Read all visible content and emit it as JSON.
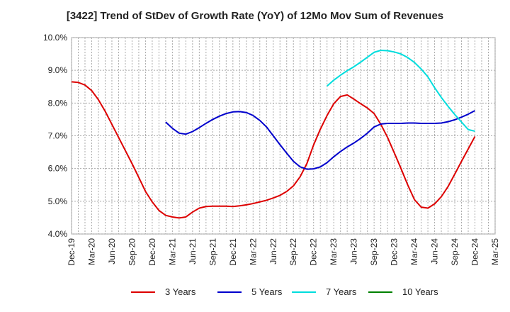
{
  "chart_data": {
    "type": "line",
    "title": "[3422]  Trend of StDev of Growth Rate (YoY) of 12Mo Mov Sum of Revenues",
    "xlabel": "",
    "ylabel": "",
    "ylim": [
      4.0,
      10.0
    ],
    "y_ticks": [
      "4.0%",
      "5.0%",
      "6.0%",
      "7.0%",
      "8.0%",
      "9.0%",
      "10.0%"
    ],
    "x_ticks": [
      "Dec-19",
      "Mar-20",
      "Jun-20",
      "Sep-20",
      "Dec-20",
      "Mar-21",
      "Jun-21",
      "Sep-21",
      "Dec-21",
      "Mar-22",
      "Jun-22",
      "Sep-22",
      "Dec-22",
      "Mar-23",
      "Jun-23",
      "Sep-23",
      "Dec-23",
      "Mar-24",
      "Jun-24",
      "Sep-24",
      "Dec-24",
      "Mar-25"
    ],
    "grid": true,
    "legend_position": "bottom",
    "series": [
      {
        "name": "3 Years",
        "color": "#dd0000",
        "points": [
          [
            0,
            8.65
          ],
          [
            1,
            8.63
          ],
          [
            2,
            8.55
          ],
          [
            3,
            8.38
          ],
          [
            4,
            8.1
          ],
          [
            5,
            7.75
          ],
          [
            6,
            7.35
          ],
          [
            7,
            6.95
          ],
          [
            8,
            6.55
          ],
          [
            9,
            6.15
          ],
          [
            10,
            5.73
          ],
          [
            11,
            5.3
          ],
          [
            12,
            4.98
          ],
          [
            13,
            4.72
          ],
          [
            14,
            4.57
          ],
          [
            15,
            4.52
          ],
          [
            16,
            4.49
          ],
          [
            17,
            4.52
          ],
          [
            18,
            4.67
          ],
          [
            19,
            4.79
          ],
          [
            20,
            4.84
          ],
          [
            21,
            4.85
          ],
          [
            22,
            4.85
          ],
          [
            23,
            4.85
          ],
          [
            24,
            4.84
          ],
          [
            25,
            4.86
          ],
          [
            26,
            4.89
          ],
          [
            27,
            4.93
          ],
          [
            28,
            4.98
          ],
          [
            29,
            5.03
          ],
          [
            30,
            5.1
          ],
          [
            31,
            5.18
          ],
          [
            32,
            5.3
          ],
          [
            33,
            5.47
          ],
          [
            34,
            5.75
          ],
          [
            35,
            6.15
          ],
          [
            36,
            6.72
          ],
          [
            37,
            7.2
          ],
          [
            38,
            7.62
          ],
          [
            39,
            7.98
          ],
          [
            40,
            8.2
          ],
          [
            41,
            8.25
          ],
          [
            42,
            8.12
          ],
          [
            43,
            7.98
          ],
          [
            44,
            7.85
          ],
          [
            45,
            7.68
          ],
          [
            46,
            7.35
          ],
          [
            47,
            6.95
          ],
          [
            48,
            6.48
          ],
          [
            49,
            6.0
          ],
          [
            50,
            5.5
          ],
          [
            51,
            5.05
          ],
          [
            52,
            4.82
          ],
          [
            53,
            4.79
          ],
          [
            54,
            4.92
          ],
          [
            55,
            5.14
          ],
          [
            56,
            5.45
          ],
          [
            57,
            5.83
          ],
          [
            58,
            6.22
          ],
          [
            59,
            6.6
          ],
          [
            60,
            6.98
          ]
        ]
      },
      {
        "name": "5 Years",
        "color": "#0000cc",
        "points": [
          [
            14,
            7.42
          ],
          [
            15,
            7.23
          ],
          [
            16,
            7.08
          ],
          [
            17,
            7.05
          ],
          [
            18,
            7.13
          ],
          [
            19,
            7.25
          ],
          [
            20,
            7.38
          ],
          [
            21,
            7.5
          ],
          [
            22,
            7.6
          ],
          [
            23,
            7.68
          ],
          [
            24,
            7.73
          ],
          [
            25,
            7.74
          ],
          [
            26,
            7.71
          ],
          [
            27,
            7.62
          ],
          [
            28,
            7.47
          ],
          [
            29,
            7.27
          ],
          [
            30,
            7.0
          ],
          [
            31,
            6.73
          ],
          [
            32,
            6.47
          ],
          [
            33,
            6.22
          ],
          [
            34,
            6.05
          ],
          [
            35,
            5.98
          ],
          [
            36,
            5.99
          ],
          [
            37,
            6.05
          ],
          [
            38,
            6.18
          ],
          [
            39,
            6.36
          ],
          [
            40,
            6.52
          ],
          [
            41,
            6.66
          ],
          [
            42,
            6.78
          ],
          [
            43,
            6.92
          ],
          [
            44,
            7.08
          ],
          [
            45,
            7.27
          ],
          [
            46,
            7.36
          ],
          [
            47,
            7.38
          ],
          [
            48,
            7.38
          ],
          [
            49,
            7.38
          ],
          [
            50,
            7.39
          ],
          [
            51,
            7.39
          ],
          [
            52,
            7.38
          ],
          [
            53,
            7.38
          ],
          [
            54,
            7.38
          ],
          [
            55,
            7.39
          ],
          [
            56,
            7.43
          ],
          [
            57,
            7.49
          ],
          [
            58,
            7.57
          ],
          [
            59,
            7.66
          ],
          [
            60,
            7.77
          ]
        ]
      },
      {
        "name": "7 Years",
        "color": "#00dddd",
        "points": [
          [
            38,
            8.52
          ],
          [
            39,
            8.7
          ],
          [
            40,
            8.85
          ],
          [
            41,
            8.99
          ],
          [
            42,
            9.11
          ],
          [
            43,
            9.25
          ],
          [
            44,
            9.4
          ],
          [
            45,
            9.55
          ],
          [
            46,
            9.61
          ],
          [
            47,
            9.6
          ],
          [
            48,
            9.56
          ],
          [
            49,
            9.5
          ],
          [
            50,
            9.39
          ],
          [
            51,
            9.24
          ],
          [
            52,
            9.04
          ],
          [
            53,
            8.8
          ],
          [
            54,
            8.47
          ],
          [
            55,
            8.17
          ],
          [
            56,
            7.9
          ],
          [
            57,
            7.65
          ],
          [
            58,
            7.42
          ],
          [
            59,
            7.19
          ],
          [
            60,
            7.14
          ]
        ]
      },
      {
        "name": "10 Years",
        "color": "#008000",
        "points": []
      }
    ]
  }
}
